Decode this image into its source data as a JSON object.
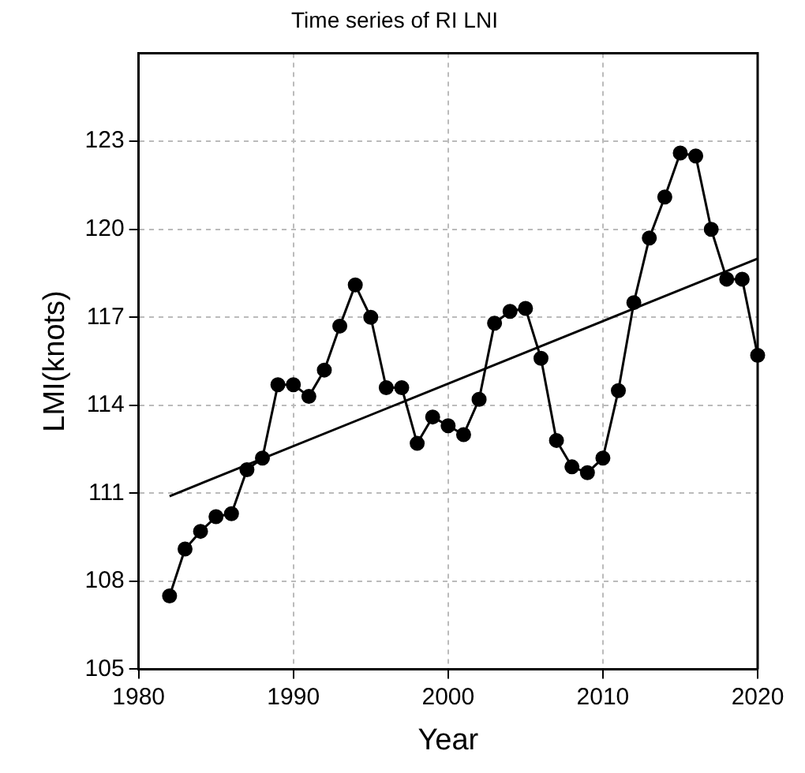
{
  "chart_data": {
    "type": "line",
    "title": "Time series of RI LNI",
    "xlabel": "Year",
    "ylabel": "LMI(knots)",
    "x": [
      1982,
      1983,
      1984,
      1985,
      1986,
      1987,
      1988,
      1989,
      1990,
      1991,
      1992,
      1993,
      1994,
      1995,
      1996,
      1997,
      1998,
      1999,
      2000,
      2001,
      2002,
      2003,
      2004,
      2005,
      2006,
      2007,
      2008,
      2009,
      2010,
      2011,
      2012,
      2013,
      2014,
      2015,
      2016,
      2017,
      2018,
      2019,
      2020
    ],
    "series": [
      {
        "color": "#000000",
        "marker": "circle",
        "values": [
          107.5,
          109.1,
          109.7,
          110.2,
          110.3,
          111.8,
          112.2,
          114.7,
          114.7,
          114.3,
          115.2,
          116.7,
          118.1,
          117.0,
          114.6,
          114.6,
          112.7,
          113.6,
          113.3,
          113.0,
          114.2,
          116.8,
          117.2,
          117.3,
          115.6,
          112.8,
          111.9,
          111.7,
          112.2,
          114.5,
          117.5,
          119.7,
          121.1,
          122.6,
          122.5,
          120.0,
          118.3,
          118.3,
          115.7
        ]
      },
      {
        "type": "line",
        "color": "#000000",
        "marker": "none",
        "x": [
          1982,
          2020
        ],
        "values": [
          110.9,
          119.0
        ]
      }
    ],
    "xlim": [
      1980,
      2020
    ],
    "xticks": [
      1980,
      1990,
      2000,
      2010,
      2020
    ],
    "ylim": [
      105,
      126
    ],
    "yticks": [
      105,
      108,
      111,
      114,
      117,
      120,
      123
    ],
    "grid": true,
    "legend": false,
    "line_style": "solid"
  }
}
